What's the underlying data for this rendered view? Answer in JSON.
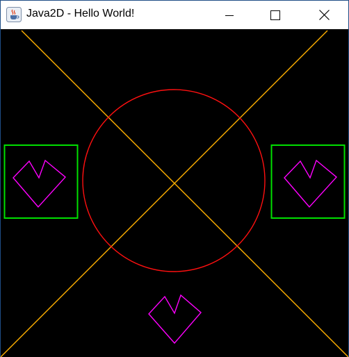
{
  "window": {
    "title": "Java2D - Hello World!",
    "icon": "java-cup-icon",
    "controls": [
      "minimize-icon",
      "maximize-icon",
      "close-icon"
    ]
  },
  "colors": {
    "background": "#000000",
    "diagonals": "#ffb000",
    "circle": "#ff0000",
    "boxes": "#00e000",
    "hearts": "#ff00ff"
  }
}
